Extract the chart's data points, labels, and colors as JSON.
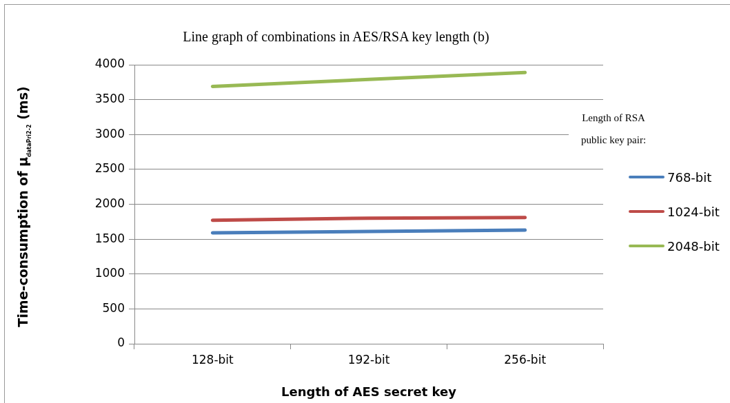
{
  "chart_data": {
    "type": "line",
    "title": "Line graph of combinations in AES/RSA key length (b)",
    "xlabel": "Length of AES secret key",
    "ylabel": "Time-consumption of μ$_{dataPri2-2}$ (ms)",
    "legend_title": "Length of RSA public key pair:",
    "categories": [
      "128-bit",
      "192-bit",
      "256-bit"
    ],
    "series": [
      {
        "name": "768-bit",
        "color": "#4a7ebb",
        "values": [
          1590,
          1610,
          1630
        ]
      },
      {
        "name": "1024-bit",
        "color": "#be4b48",
        "values": [
          1770,
          1800,
          1810
        ]
      },
      {
        "name": "2048-bit",
        "color": "#98b954",
        "values": [
          3690,
          3790,
          3890
        ]
      }
    ],
    "ylim": [
      0,
      4000
    ],
    "yticks": [
      0,
      500,
      1000,
      1500,
      2000,
      2500,
      3000,
      3500,
      4000
    ],
    "grid": "y",
    "legend": "right",
    "marker": "none",
    "line_style": "solid"
  }
}
